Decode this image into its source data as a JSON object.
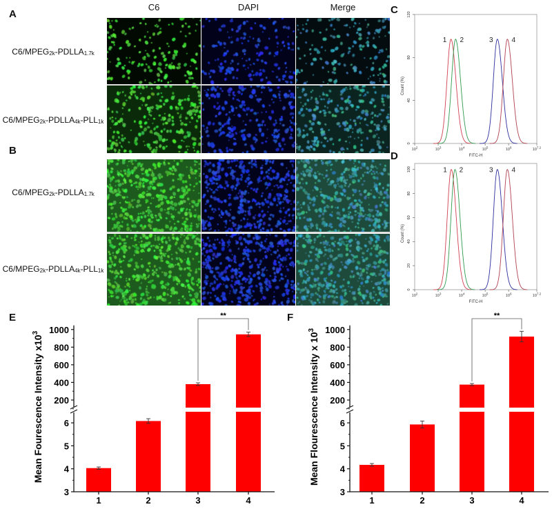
{
  "panel_letters": {
    "a": "A",
    "b": "B",
    "c": "C",
    "d": "D",
    "e": "E",
    "f": "F"
  },
  "columns": [
    "C6",
    "DAPI",
    "Merge"
  ],
  "row_labels": [
    {
      "base": "C6/MPEG",
      "s1": "2k",
      "mid": "-PDLLA",
      "s2": "1.7k",
      "mid2": "",
      "s3": ""
    },
    {
      "base": "C6/MPEG",
      "s1": "2k",
      "mid": "-PDLLA",
      "s2": "4k",
      "mid2": "-PLL",
      "s3": "1k"
    },
    {
      "base": "C6/MPEG",
      "s1": "2k",
      "mid": "-PDLLA",
      "s2": "1.7k",
      "mid2": "",
      "s3": ""
    },
    {
      "base": "C6/MPEG",
      "s1": "2k",
      "mid": "-PDLLA",
      "s2": "4k",
      "mid2": "-PLL",
      "s3": "1k"
    }
  ],
  "colors": {
    "bar": "#ff0000",
    "curve1": "#d0404f",
    "curve2": "#2e9a4e",
    "curve3": "#2c2c9c",
    "curve4": "#b0404f"
  },
  "chart_data": [
    {
      "id": "C",
      "type": "line",
      "xlabel": "FITC-H",
      "ylabel": "Count (%)",
      "x_scale": "log",
      "xlim": [
        100,
        15848932
      ],
      "ylim": [
        0,
        120
      ],
      "xticks": [
        "10^2",
        "10^3",
        "10^4",
        "10^5",
        "10^6",
        "10^7.2"
      ],
      "yticks": [
        0,
        40,
        80,
        120
      ],
      "series": [
        {
          "name": "1",
          "peak_x": 3500,
          "peak_y": 97
        },
        {
          "name": "2",
          "peak_x": 5500,
          "peak_y": 97
        },
        {
          "name": "3",
          "peak_x": 330000,
          "peak_y": 97
        },
        {
          "name": "4",
          "peak_x": 880000,
          "peak_y": 97
        }
      ]
    },
    {
      "id": "D",
      "type": "line",
      "xlabel": "FITC-H",
      "ylabel": "Count (%)",
      "x_scale": "log",
      "xlim": [
        100,
        15848932
      ],
      "ylim": [
        0,
        105
      ],
      "xticks": [
        "10^2",
        "10^3",
        "10^4",
        "10^5",
        "10^6",
        "10^7.2"
      ],
      "yticks": [
        0,
        20,
        40,
        60,
        80,
        100
      ],
      "series": [
        {
          "name": "1",
          "peak_x": 3600,
          "peak_y": 100
        },
        {
          "name": "2",
          "peak_x": 5200,
          "peak_y": 100
        },
        {
          "name": "3",
          "peak_x": 330000,
          "peak_y": 100
        },
        {
          "name": "4",
          "peak_x": 880000,
          "peak_y": 100
        }
      ]
    },
    {
      "id": "E",
      "type": "bar",
      "categories": [
        "1",
        "2",
        "3",
        "4"
      ],
      "values": [
        4.03,
        6.08,
        380,
        945
      ],
      "errors": [
        0.05,
        0.1,
        15,
        25
      ],
      "ylabel": "Mean Fourescence Intensity x10",
      "ylabel_exp": "3",
      "y_break": true,
      "ylim_lower": [
        3,
        6.5
      ],
      "ylim_upper": [
        100,
        1000
      ],
      "yticks_lower": [
        "3",
        "4",
        "5",
        "6"
      ],
      "yticks_upper": [
        "200",
        "400",
        "600",
        "800",
        "1000"
      ],
      "significance": {
        "between": [
          "3",
          "4"
        ],
        "label": "**"
      }
    },
    {
      "id": "F",
      "type": "bar",
      "categories": [
        "1",
        "2",
        "3",
        "4"
      ],
      "values": [
        4.17,
        5.93,
        375,
        920
      ],
      "errors": [
        0.06,
        0.15,
        12,
        60
      ],
      "ylabel": "Mean Flourescence Intensity x 10",
      "ylabel_exp": "3",
      "y_break": true,
      "ylim_lower": [
        3,
        6.5
      ],
      "ylim_upper": [
        100,
        1000
      ],
      "yticks_lower": [
        "3",
        "4",
        "5",
        "6"
      ],
      "yticks_upper": [
        "200",
        "400",
        "600",
        "800",
        "1000"
      ],
      "significance": {
        "between": [
          "3",
          "4"
        ],
        "label": "**"
      }
    }
  ]
}
